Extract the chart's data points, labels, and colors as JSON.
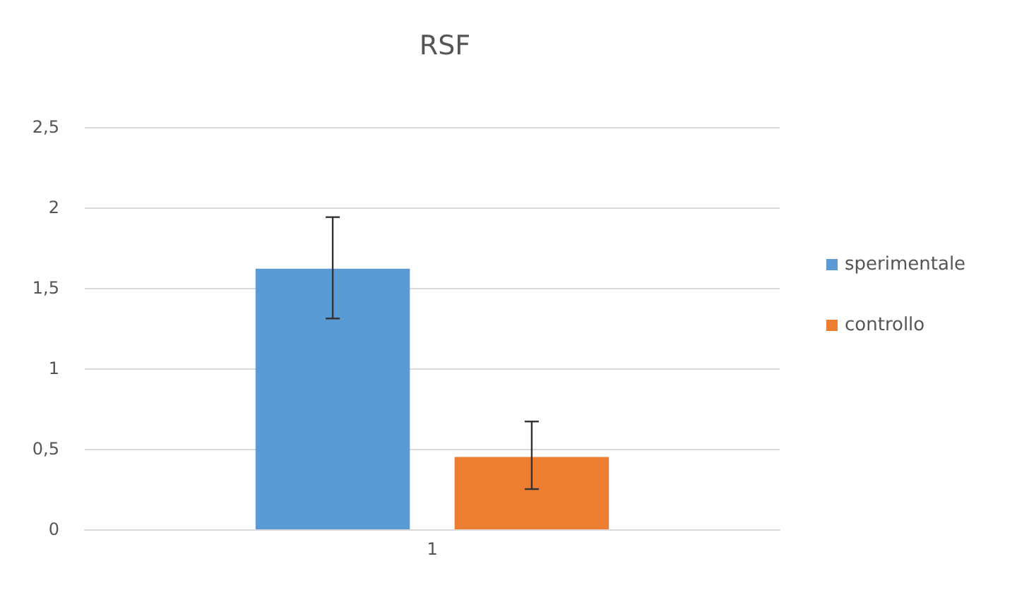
{
  "chart_data": {
    "type": "bar",
    "title": "RSF",
    "categories": [
      "1"
    ],
    "series": [
      {
        "name": "sperimentale",
        "color": "#5b9bd5",
        "values": [
          1.62
        ],
        "errors": [
          [
            1.31,
            1.94
          ]
        ]
      },
      {
        "name": "controllo",
        "color": "#ed7d31",
        "values": [
          0.45
        ],
        "errors": [
          [
            0.25,
            0.67
          ]
        ]
      }
    ],
    "ylim": [
      0,
      2.5
    ],
    "yticks": [
      0,
      {
        "value": 0.5,
        "label": "0,5"
      },
      1,
      {
        "value": 1.5,
        "label": "1,5"
      },
      2,
      {
        "value": 2.5,
        "label": "2,5"
      }
    ],
    "grid": "y",
    "legend": "right"
  }
}
